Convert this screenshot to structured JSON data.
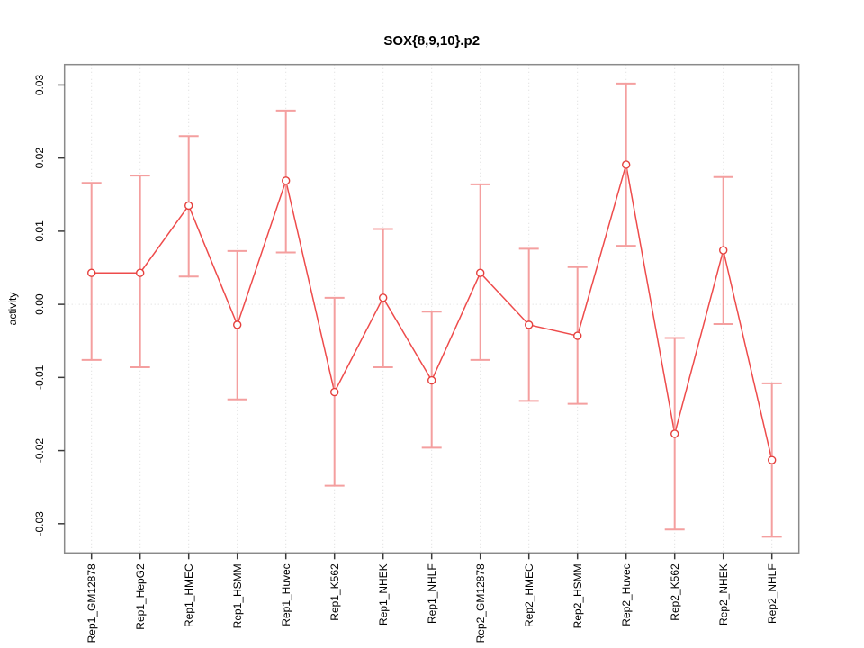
{
  "title": "SOX{8,9,10}.p2",
  "colors": {
    "line": "#ee4b4b",
    "point_stroke": "#e5403d",
    "point_fill": "#ffffff",
    "error_bar": "#f49f9f",
    "grid": "#d9d9d9",
    "box": "#8a8a8a",
    "tick": "#3a3a3a",
    "text": "#000000"
  },
  "chart_data": {
    "type": "line",
    "title": "SOX{8,9,10}.p2",
    "xlabel": "",
    "ylabel": "activity",
    "ylim": [
      -0.034,
      0.0328
    ],
    "grid": "dotted vertical line at each category and dotted horizontal line at y=0",
    "legend": "none",
    "point_style": "open circle with vertical error bars and caps",
    "yticks": [
      {
        "value": -0.03,
        "label": "-0.03"
      },
      {
        "value": -0.02,
        "label": "-0.02"
      },
      {
        "value": -0.01,
        "label": "-0.01"
      },
      {
        "value": 0.0,
        "label": "0.00"
      },
      {
        "value": 0.01,
        "label": "0.01"
      },
      {
        "value": 0.02,
        "label": "0.02"
      },
      {
        "value": 0.03,
        "label": "0.03"
      }
    ],
    "categories": [
      "Rep1_GM12878",
      "Rep1_HepG2",
      "Rep1_HMEC",
      "Rep1_HSMM",
      "Rep1_Huvec",
      "Rep1_K562",
      "Rep1_NHEK",
      "Rep1_NHLF",
      "Rep2_GM12878",
      "Rep2_HMEC",
      "Rep2_HSMM",
      "Rep2_Huvec",
      "Rep2_K562",
      "Rep2_NHEK",
      "Rep2_NHLF"
    ],
    "series": [
      {
        "name": "activity",
        "values": [
          0.0043,
          0.0043,
          0.0135,
          -0.0028,
          0.0169,
          -0.012,
          0.0009,
          -0.0104,
          0.0043,
          -0.0028,
          -0.0043,
          0.0191,
          -0.0177,
          0.0074,
          -0.0213
        ],
        "err_hi": [
          0.0166,
          0.0176,
          0.023,
          0.0073,
          0.0265,
          0.0009,
          0.0103,
          -0.001,
          0.0164,
          0.0076,
          0.0051,
          0.0302,
          -0.0046,
          0.0174,
          -0.0108
        ],
        "err_lo": [
          -0.0076,
          -0.0086,
          0.0038,
          -0.013,
          0.0071,
          -0.0248,
          -0.0086,
          -0.0196,
          -0.0076,
          -0.0132,
          -0.0136,
          0.008,
          -0.0308,
          -0.0027,
          -0.0318
        ]
      }
    ]
  }
}
